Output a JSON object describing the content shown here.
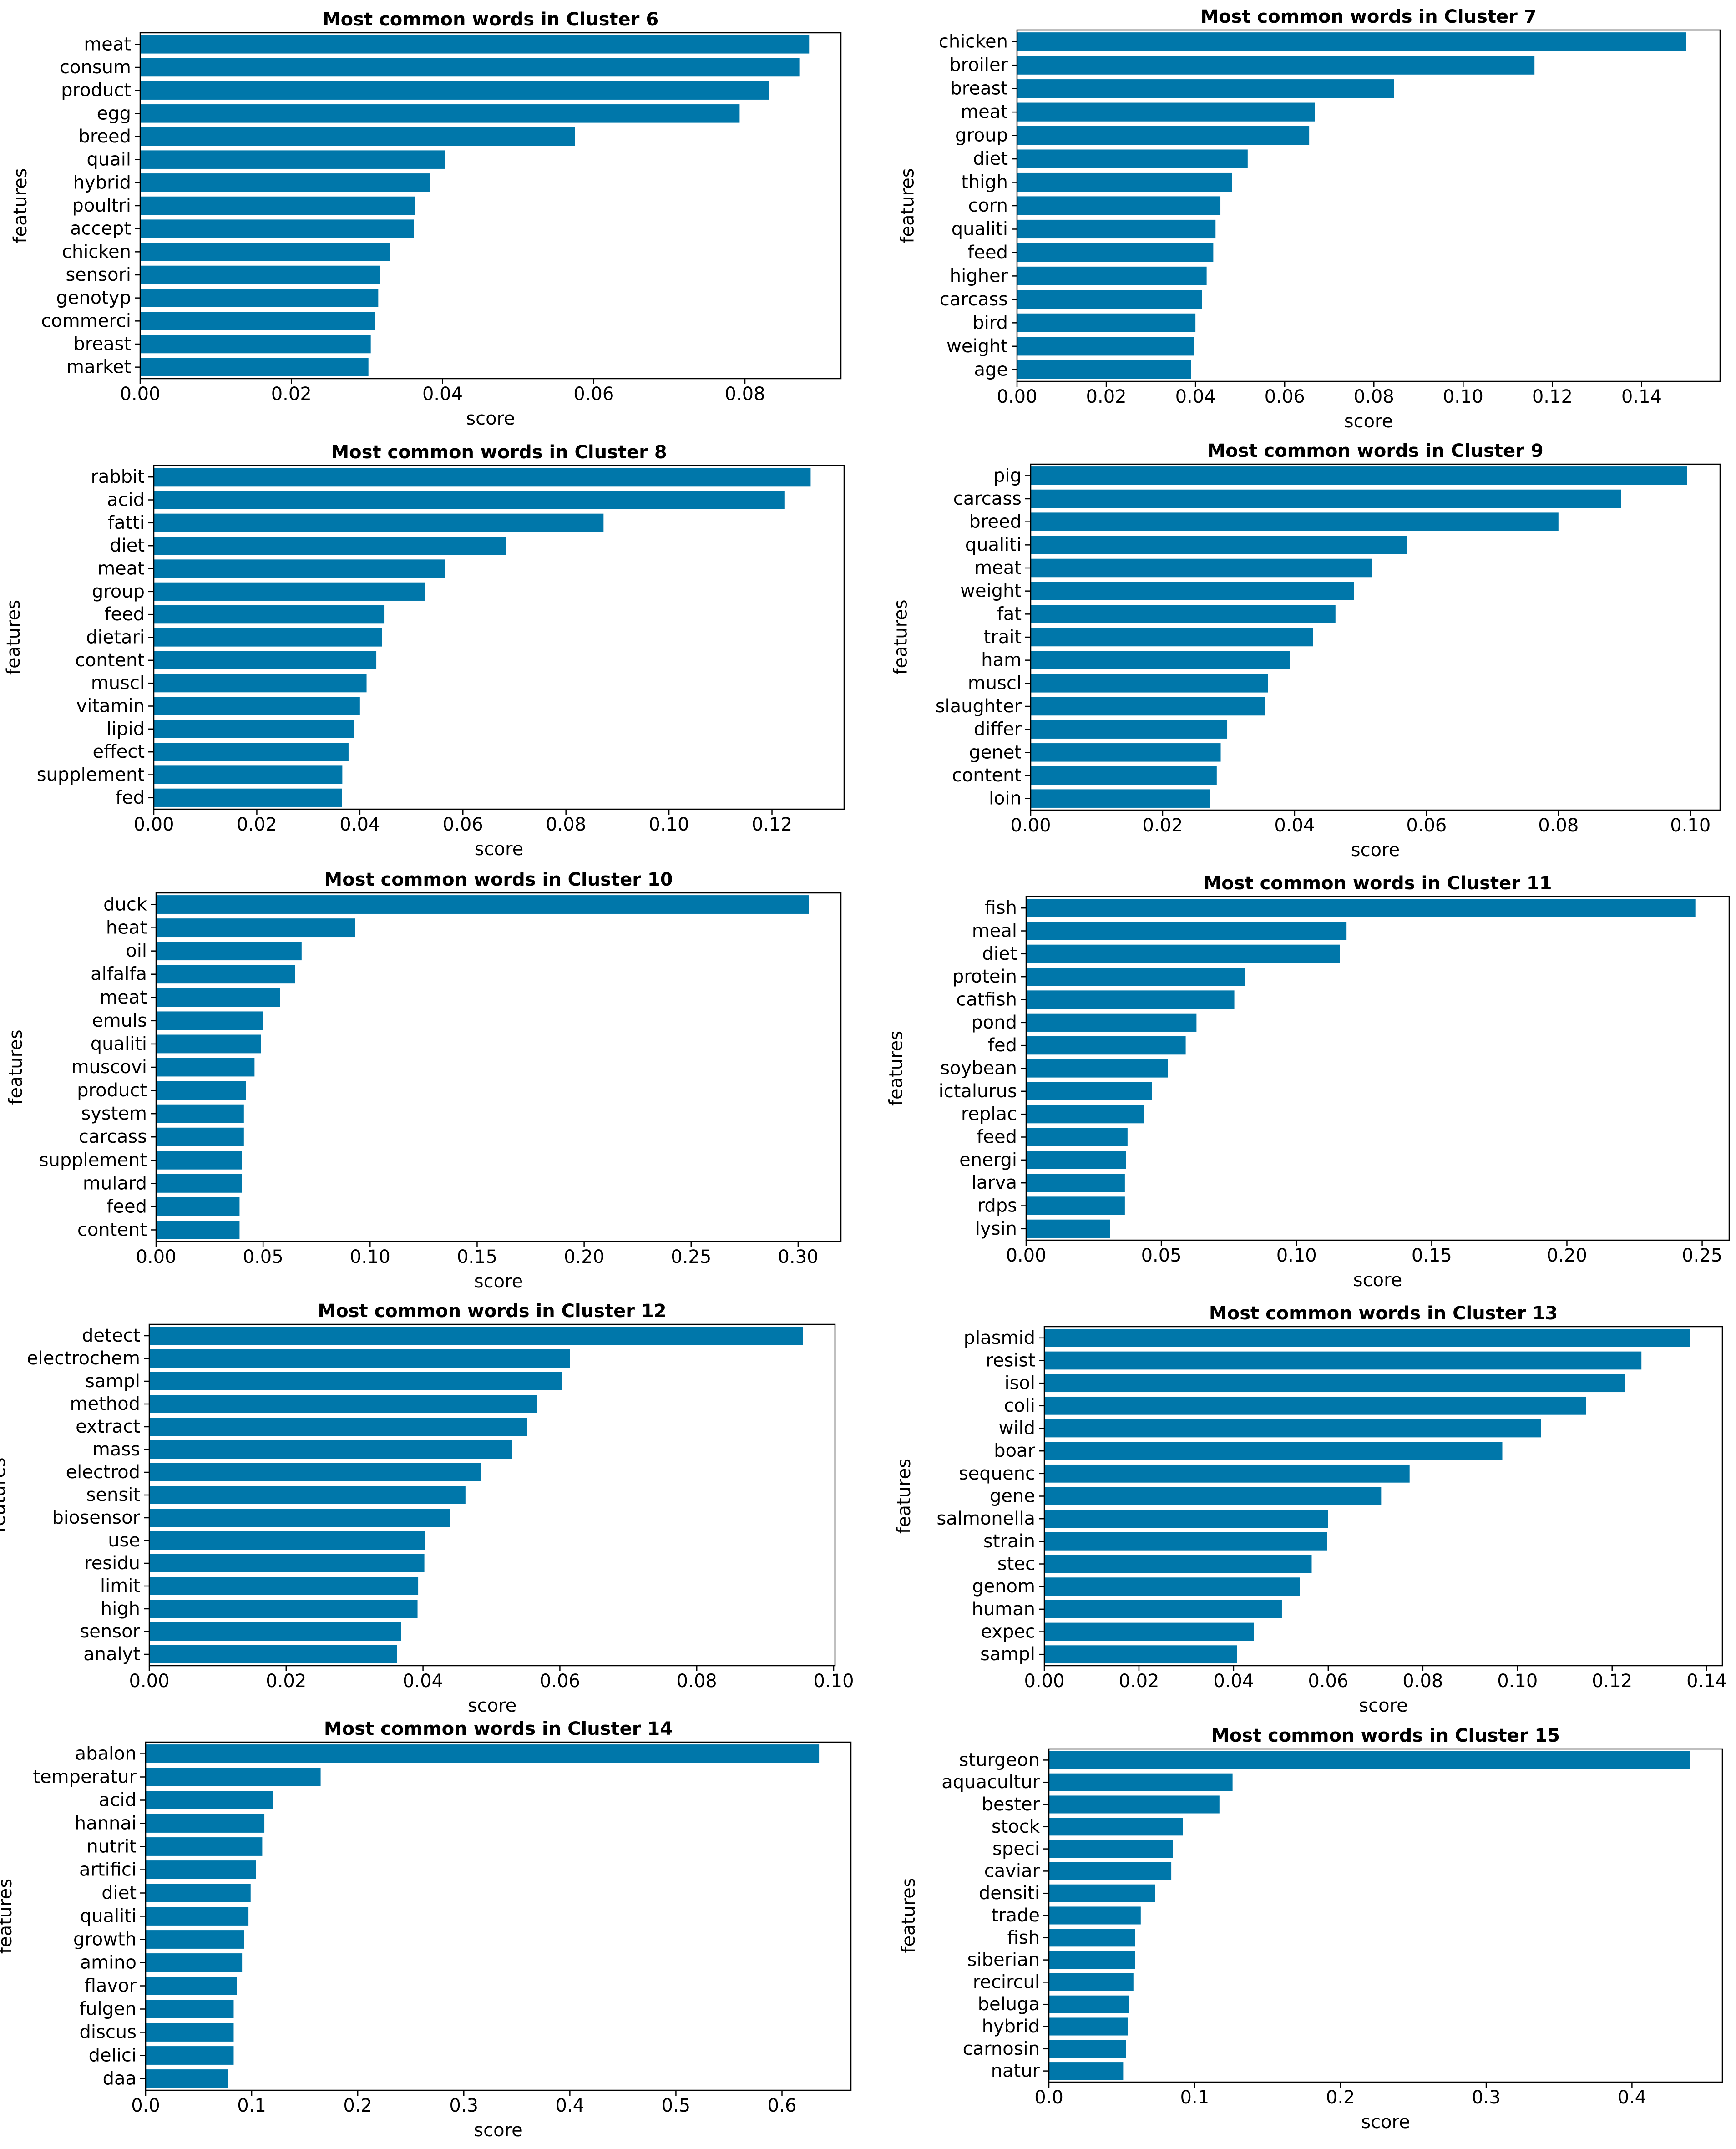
{
  "bar_color": "#0077aa",
  "chart_data": [
    {
      "type": "bar",
      "orientation": "horizontal",
      "title": "Most common words in Cluster 6",
      "xlabel": "score",
      "ylabel": "features",
      "categories": [
        "meat",
        "consum",
        "product",
        "egg",
        "breed",
        "quail",
        "hybrid",
        "poultri",
        "accept",
        "chicken",
        "sensori",
        "genotyp",
        "commerci",
        "breast",
        "market"
      ],
      "values": [
        0.0885,
        0.0872,
        0.0832,
        0.0793,
        0.0575,
        0.0403,
        0.0383,
        0.0363,
        0.0362,
        0.033,
        0.0317,
        0.0315,
        0.0311,
        0.0305,
        0.0302
      ],
      "xlim": [
        0,
        0.0927
      ],
      "xticks": [
        0,
        0.02,
        0.04,
        0.06,
        0.08
      ],
      "xtick_labels": [
        "0.00",
        "0.02",
        "0.04",
        "0.06",
        "0.08"
      ]
    },
    {
      "type": "bar",
      "orientation": "horizontal",
      "title": "Most common words in Cluster 7",
      "xlabel": "score",
      "ylabel": "features",
      "categories": [
        "chicken",
        "broiler",
        "breast",
        "meat",
        "group",
        "diet",
        "thigh",
        "corn",
        "qualiti",
        "feed",
        "higher",
        "carcass",
        "bird",
        "weight",
        "age"
      ],
      "values": [
        0.15,
        0.116,
        0.0845,
        0.0668,
        0.0655,
        0.0517,
        0.0482,
        0.0456,
        0.0445,
        0.044,
        0.0425,
        0.0415,
        0.04,
        0.0397,
        0.039
      ],
      "xlim": [
        0,
        0.1576
      ],
      "xticks": [
        0,
        0.02,
        0.04,
        0.06,
        0.08,
        0.1,
        0.12,
        0.14
      ],
      "xtick_labels": [
        "0.00",
        "0.02",
        "0.04",
        "0.06",
        "0.08",
        "0.10",
        "0.12",
        "0.14"
      ]
    },
    {
      "type": "bar",
      "orientation": "horizontal",
      "title": "Most common words in Cluster 8",
      "xlabel": "score",
      "ylabel": "features",
      "categories": [
        "rabbit",
        "acid",
        "fatti",
        "diet",
        "meat",
        "group",
        "feed",
        "dietari",
        "content",
        "muscl",
        "vitamin",
        "lipid",
        "effect",
        "supplement",
        "fed"
      ],
      "values": [
        0.1275,
        0.1225,
        0.0873,
        0.0683,
        0.0565,
        0.0527,
        0.0447,
        0.0443,
        0.0432,
        0.0413,
        0.04,
        0.0388,
        0.0378,
        0.0366,
        0.0365
      ],
      "xlim": [
        0,
        0.134
      ],
      "xticks": [
        0,
        0.02,
        0.04,
        0.06,
        0.08,
        0.1,
        0.12
      ],
      "xtick_labels": [
        "0.00",
        "0.02",
        "0.04",
        "0.06",
        "0.08",
        "0.10",
        "0.12"
      ]
    },
    {
      "type": "bar",
      "orientation": "horizontal",
      "title": "Most common words in Cluster 9",
      "xlabel": "score",
      "ylabel": "features",
      "categories": [
        "pig",
        "carcass",
        "breed",
        "qualiti",
        "meat",
        "weight",
        "fat",
        "trait",
        "ham",
        "muscl",
        "slaughter",
        "differ",
        "genet",
        "content",
        "loin"
      ],
      "values": [
        0.0995,
        0.0895,
        0.08,
        0.057,
        0.0517,
        0.049,
        0.0462,
        0.0428,
        0.0393,
        0.036,
        0.0355,
        0.0298,
        0.0288,
        0.0282,
        0.0272
      ],
      "xlim": [
        0,
        0.1045
      ],
      "xticks": [
        0,
        0.02,
        0.04,
        0.06,
        0.08,
        0.1
      ],
      "xtick_labels": [
        "0.00",
        "0.02",
        "0.04",
        "0.06",
        "0.08",
        "0.10"
      ]
    },
    {
      "type": "bar",
      "orientation": "horizontal",
      "title": "Most common words in Cluster 10",
      "xlabel": "score",
      "ylabel": "features",
      "categories": [
        "duck",
        "heat",
        "oil",
        "alfalfa",
        "meat",
        "emuls",
        "qualiti",
        "muscovi",
        "product",
        "system",
        "carcass",
        "supplement",
        "mulard",
        "feed",
        "content"
      ],
      "values": [
        0.305,
        0.093,
        0.068,
        0.065,
        0.058,
        0.05,
        0.049,
        0.046,
        0.042,
        0.041,
        0.041,
        0.04,
        0.04,
        0.039,
        0.039
      ],
      "xlim": [
        0,
        0.32
      ],
      "xticks": [
        0,
        0.05,
        0.1,
        0.15,
        0.2,
        0.25,
        0.3
      ],
      "xtick_labels": [
        "0.00",
        "0.05",
        "0.10",
        "0.15",
        "0.20",
        "0.25",
        "0.30"
      ]
    },
    {
      "type": "bar",
      "orientation": "horizontal",
      "title": "Most common words in Cluster 11",
      "xlabel": "score",
      "ylabel": "features",
      "categories": [
        "fish",
        "meal",
        "diet",
        "protein",
        "catfish",
        "pond",
        "fed",
        "soybean",
        "ictalurus",
        "replac",
        "feed",
        "energi",
        "larva",
        "rdps",
        "lysin"
      ],
      "values": [
        0.2475,
        0.1185,
        0.116,
        0.081,
        0.077,
        0.063,
        0.059,
        0.0525,
        0.0465,
        0.0435,
        0.0375,
        0.037,
        0.0365,
        0.0365,
        0.031
      ],
      "xlim": [
        0,
        0.26
      ],
      "xticks": [
        0,
        0.05,
        0.1,
        0.15,
        0.2,
        0.25
      ],
      "xtick_labels": [
        "0.00",
        "0.05",
        "0.10",
        "0.15",
        "0.20",
        "0.25"
      ]
    },
    {
      "type": "bar",
      "orientation": "horizontal",
      "title": "Most common words in Cluster 12",
      "xlabel": "score",
      "ylabel": "features",
      "categories": [
        "detect",
        "electrochem",
        "sampl",
        "method",
        "extract",
        "mass",
        "electrod",
        "sensit",
        "biosensor",
        "use",
        "residu",
        "limit",
        "high",
        "sensor",
        "analyt"
      ],
      "values": [
        0.0955,
        0.0615,
        0.0603,
        0.0567,
        0.0552,
        0.053,
        0.0485,
        0.0462,
        0.044,
        0.0403,
        0.0402,
        0.0393,
        0.0392,
        0.0368,
        0.0362
      ],
      "xlim": [
        0,
        0.1002
      ],
      "xticks": [
        0,
        0.02,
        0.04,
        0.06,
        0.08,
        0.1
      ],
      "xtick_labels": [
        "0.00",
        "0.02",
        "0.04",
        "0.06",
        "0.08",
        "0.10"
      ]
    },
    {
      "type": "bar",
      "orientation": "horizontal",
      "title": "Most common words in Cluster 13",
      "xlabel": "score",
      "ylabel": "features",
      "categories": [
        "plasmid",
        "resist",
        "isol",
        "coli",
        "wild",
        "boar",
        "sequenc",
        "gene",
        "salmonella",
        "strain",
        "stec",
        "genom",
        "human",
        "expec",
        "sampl"
      ],
      "values": [
        0.1365,
        0.1262,
        0.1228,
        0.1145,
        0.105,
        0.0968,
        0.0772,
        0.0712,
        0.06,
        0.0598,
        0.0565,
        0.054,
        0.0502,
        0.0443,
        0.0407
      ],
      "xlim": [
        0,
        0.1433
      ],
      "xticks": [
        0,
        0.02,
        0.04,
        0.06,
        0.08,
        0.1,
        0.12,
        0.14
      ],
      "xtick_labels": [
        "0.00",
        "0.02",
        "0.04",
        "0.06",
        "0.08",
        "0.10",
        "0.12",
        "0.14"
      ]
    },
    {
      "type": "bar",
      "orientation": "horizontal",
      "title": "Most common words in Cluster 14",
      "xlabel": "score",
      "ylabel": "features",
      "categories": [
        "abalon",
        "temperatur",
        "acid",
        "hannai",
        "nutrit",
        "artifici",
        "diet",
        "qualiti",
        "growth",
        "amino",
        "flavor",
        "fulgen",
        "discus",
        "delici",
        "daa"
      ],
      "values": [
        0.635,
        0.165,
        0.12,
        0.112,
        0.11,
        0.104,
        0.099,
        0.097,
        0.093,
        0.091,
        0.086,
        0.083,
        0.083,
        0.083,
        0.078
      ],
      "xlim": [
        0,
        0.665
      ],
      "xticks": [
        0,
        0.1,
        0.2,
        0.3,
        0.4,
        0.5,
        0.6
      ],
      "xtick_labels": [
        "0.0",
        "0.1",
        "0.2",
        "0.3",
        "0.4",
        "0.5",
        "0.6"
      ]
    },
    {
      "type": "bar",
      "orientation": "horizontal",
      "title": "Most common words in Cluster 15",
      "xlabel": "score",
      "ylabel": "features",
      "categories": [
        "sturgeon",
        "aquacultur",
        "bester",
        "stock",
        "speci",
        "caviar",
        "densiti",
        "trade",
        "fish",
        "siberian",
        "recircul",
        "beluga",
        "hybrid",
        "carnosin",
        "natur"
      ],
      "values": [
        0.44,
        0.126,
        0.117,
        0.092,
        0.085,
        0.084,
        0.073,
        0.063,
        0.059,
        0.059,
        0.058,
        0.055,
        0.054,
        0.053,
        0.051
      ],
      "xlim": [
        0,
        0.462
      ],
      "xticks": [
        0,
        0.1,
        0.2,
        0.3,
        0.4
      ],
      "xtick_labels": [
        "0.0",
        "0.1",
        "0.2",
        "0.3",
        "0.4"
      ]
    }
  ]
}
